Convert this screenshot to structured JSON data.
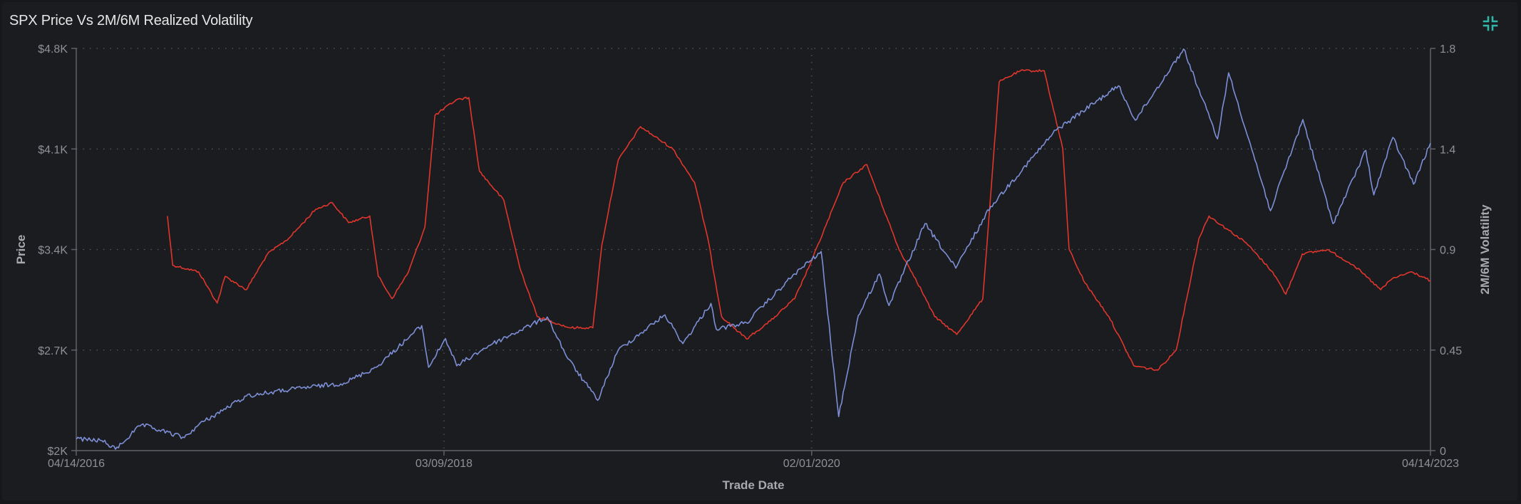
{
  "header": {
    "title": "SPX Price Vs 2M/6M Realized Volatility"
  },
  "controls": {
    "collapse_icon": "collapse-icon",
    "accent_color": "#2fb7a8"
  },
  "chart_data": {
    "type": "line",
    "title": "SPX Price Vs 2M/6M Realized Volatility",
    "xlabel": "Trade Date",
    "ylabel_left": "Price",
    "ylabel_right": "2M/6M Volatility",
    "x_range": [
      "2016-04-14",
      "2023-04-14"
    ],
    "x_ticks": [
      "04/14/2016",
      "03/09/2018",
      "02/01/2020",
      "04/14/2023"
    ],
    "y_left_range": [
      2000,
      4800
    ],
    "y_left_ticks": [
      "$2K",
      "$2.7K",
      "$3.4K",
      "$4.1K",
      "$4.8K"
    ],
    "y_left_tick_values": [
      2000,
      2700,
      3400,
      4100,
      4800
    ],
    "y_right_range": [
      0,
      1.8
    ],
    "y_right_ticks": [
      "0",
      "0.45",
      "0.9",
      "1.4",
      "1.8"
    ],
    "y_right_tick_values": [
      0,
      0.45,
      0.9,
      1.35,
      1.8
    ],
    "grid": true,
    "series": [
      {
        "name": "",
        "axis": "left",
        "color": "#7d8fd6",
        "points": [
          [
            "2016-04-14",
            2080
          ],
          [
            "2016-06-01",
            2070
          ],
          [
            "2016-06-27",
            2010
          ],
          [
            "2016-08-15",
            2180
          ],
          [
            "2016-11-04",
            2090
          ],
          [
            "2016-12-01",
            2180
          ],
          [
            "2017-03-01",
            2380
          ],
          [
            "2017-06-01",
            2430
          ],
          [
            "2017-09-01",
            2470
          ],
          [
            "2017-11-01",
            2580
          ],
          [
            "2018-01-26",
            2870
          ],
          [
            "2018-02-08",
            2580
          ],
          [
            "2018-03-12",
            2780
          ],
          [
            "2018-04-02",
            2590
          ],
          [
            "2018-06-01",
            2730
          ],
          [
            "2018-09-20",
            2930
          ],
          [
            "2018-10-29",
            2640
          ],
          [
            "2018-12-24",
            2350
          ],
          [
            "2019-02-01",
            2700
          ],
          [
            "2019-04-30",
            2945
          ],
          [
            "2019-06-03",
            2745
          ],
          [
            "2019-07-26",
            3025
          ],
          [
            "2019-08-05",
            2845
          ],
          [
            "2019-10-01",
            2890
          ],
          [
            "2019-12-31",
            3230
          ],
          [
            "2020-02-19",
            3386
          ],
          [
            "2020-03-23",
            2237
          ],
          [
            "2020-04-29",
            2940
          ],
          [
            "2020-06-08",
            3230
          ],
          [
            "2020-06-26",
            3010
          ],
          [
            "2020-09-02",
            3580
          ],
          [
            "2020-10-30",
            3270
          ],
          [
            "2021-01-04",
            3700
          ],
          [
            "2021-05-07",
            4230
          ],
          [
            "2021-09-02",
            4540
          ],
          [
            "2021-10-04",
            4300
          ],
          [
            "2022-01-03",
            4796
          ],
          [
            "2022-03-08",
            4170
          ],
          [
            "2022-03-29",
            4630
          ],
          [
            "2022-06-16",
            3670
          ],
          [
            "2022-08-16",
            4305
          ],
          [
            "2022-10-12",
            3580
          ],
          [
            "2022-12-13",
            4090
          ],
          [
            "2022-12-28",
            3780
          ],
          [
            "2023-02-02",
            4180
          ],
          [
            "2023-03-13",
            3855
          ],
          [
            "2023-04-14",
            4140
          ]
        ]
      },
      {
        "name": "",
        "axis": "right",
        "color": "#e0362c",
        "points": [
          [
            "2016-10-03",
            1.05
          ],
          [
            "2016-10-13",
            0.83
          ],
          [
            "2016-12-01",
            0.8
          ],
          [
            "2017-01-05",
            0.66
          ],
          [
            "2017-01-20",
            0.78
          ],
          [
            "2017-03-01",
            0.72
          ],
          [
            "2017-04-10",
            0.88
          ],
          [
            "2017-05-20",
            0.95
          ],
          [
            "2017-07-10",
            1.08
          ],
          [
            "2017-08-10",
            1.11
          ],
          [
            "2017-09-10",
            1.02
          ],
          [
            "2017-10-20",
            1.05
          ],
          [
            "2017-11-05",
            0.78
          ],
          [
            "2017-12-01",
            0.68
          ],
          [
            "2018-01-01",
            0.8
          ],
          [
            "2018-02-01",
            1.0
          ],
          [
            "2018-02-20",
            1.5
          ],
          [
            "2018-04-01",
            1.57
          ],
          [
            "2018-04-25",
            1.58
          ],
          [
            "2018-05-15",
            1.25
          ],
          [
            "2018-06-30",
            1.12
          ],
          [
            "2018-07-30",
            0.82
          ],
          [
            "2018-09-01",
            0.6
          ],
          [
            "2018-11-01",
            0.55
          ],
          [
            "2018-12-15",
            0.55
          ],
          [
            "2019-01-01",
            0.92
          ],
          [
            "2019-02-01",
            1.3
          ],
          [
            "2019-03-15",
            1.45
          ],
          [
            "2019-05-15",
            1.35
          ],
          [
            "2019-06-25",
            1.2
          ],
          [
            "2019-07-20",
            0.95
          ],
          [
            "2019-08-15",
            0.6
          ],
          [
            "2019-10-01",
            0.5
          ],
          [
            "2019-11-15",
            0.58
          ],
          [
            "2019-12-31",
            0.68
          ],
          [
            "2020-02-01",
            0.85
          ],
          [
            "2020-04-01",
            1.2
          ],
          [
            "2020-05-15",
            1.28
          ],
          [
            "2020-07-15",
            0.9
          ],
          [
            "2020-08-15",
            0.77
          ],
          [
            "2020-09-20",
            0.6
          ],
          [
            "2020-11-01",
            0.52
          ],
          [
            "2020-12-20",
            0.68
          ],
          [
            "2021-01-20",
            1.65
          ],
          [
            "2021-03-01",
            1.7
          ],
          [
            "2021-04-15",
            1.7
          ],
          [
            "2021-05-20",
            1.35
          ],
          [
            "2021-06-01",
            0.9
          ],
          [
            "2021-07-01",
            0.75
          ],
          [
            "2021-08-15",
            0.6
          ],
          [
            "2021-10-01",
            0.38
          ],
          [
            "2021-11-15",
            0.36
          ],
          [
            "2021-12-20",
            0.45
          ],
          [
            "2022-02-01",
            0.95
          ],
          [
            "2022-02-20",
            1.05
          ],
          [
            "2022-05-01",
            0.93
          ],
          [
            "2022-06-20",
            0.8
          ],
          [
            "2022-07-15",
            0.7
          ],
          [
            "2022-08-15",
            0.88
          ],
          [
            "2022-10-01",
            0.9
          ],
          [
            "2022-11-20",
            0.83
          ],
          [
            "2023-01-10",
            0.72
          ],
          [
            "2023-02-01",
            0.77
          ],
          [
            "2023-03-10",
            0.8
          ],
          [
            "2023-04-14",
            0.76
          ]
        ]
      }
    ]
  }
}
